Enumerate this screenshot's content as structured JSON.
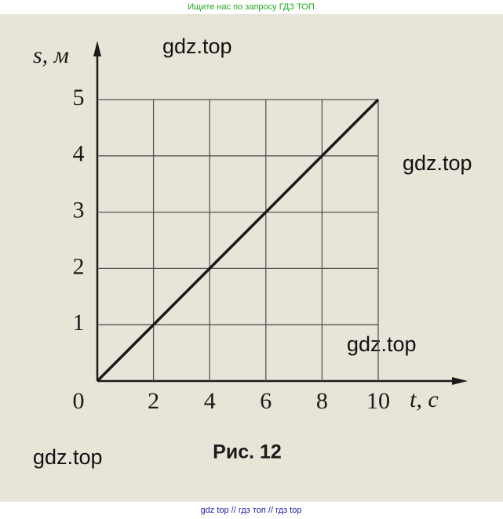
{
  "header": "Ищите нас по запросу ГДЗ ТОП",
  "footer": "gdz top  //  гдз топ  //  гдз top",
  "watermarks": [
    "gdz.top",
    "gdz.top",
    "gdz.top",
    "gdz.top"
  ],
  "chart_data": {
    "type": "line",
    "title": "Рис. 12",
    "x_label": "t, с",
    "y_label": "s, м",
    "x": [
      0,
      10
    ],
    "values": [
      0,
      5
    ],
    "color": "#1a1a1a",
    "xlim": [
      0,
      10
    ],
    "ylim": [
      0,
      5
    ],
    "xticks": [
      0,
      2,
      4,
      6,
      8,
      10
    ],
    "yticks": [
      1,
      2,
      3,
      4,
      5
    ],
    "grid": true
  }
}
